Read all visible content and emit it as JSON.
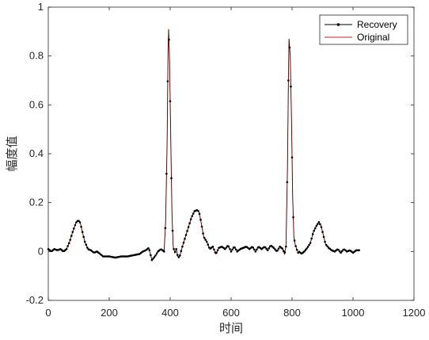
{
  "chart_data": {
    "type": "line",
    "xlabel": "时间",
    "ylabel": "幅度值",
    "xlim": [
      0,
      1200
    ],
    "ylim": [
      -0.2,
      1
    ],
    "xticks": [
      0,
      200,
      400,
      600,
      800,
      1000,
      1200
    ],
    "yticks": [
      -0.2,
      0,
      0.2,
      0.4,
      0.6,
      0.8,
      1
    ],
    "xtick_labels": [
      "0",
      "200",
      "400",
      "600",
      "800",
      "1000",
      "1200"
    ],
    "ytick_labels": [
      "-0.2",
      "0",
      "0.2",
      "0.4",
      "0.6",
      "0.8",
      "1"
    ],
    "grid": false,
    "legend_position": "top-right",
    "series": [
      {
        "name": "Recovery",
        "color": "#000000",
        "marker": "dot"
      },
      {
        "name": "Original",
        "color": "#cc1f1f",
        "marker": "none"
      }
    ],
    "x": [
      0,
      10,
      20,
      30,
      40,
      50,
      60,
      70,
      80,
      90,
      95,
      100,
      105,
      110,
      120,
      130,
      140,
      150,
      160,
      170,
      180,
      200,
      220,
      240,
      260,
      280,
      300,
      310,
      320,
      330,
      340,
      350,
      360,
      370,
      380,
      385,
      390,
      393,
      395,
      398,
      402,
      406,
      410,
      415,
      420,
      425,
      430,
      440,
      450,
      460,
      470,
      480,
      490,
      495,
      500,
      510,
      520,
      530,
      540,
      550,
      560,
      570,
      580,
      590,
      600,
      610,
      620,
      630,
      640,
      650,
      660,
      670,
      680,
      690,
      700,
      710,
      720,
      730,
      740,
      750,
      760,
      770,
      775,
      780,
      785,
      788,
      790,
      794,
      798,
      802,
      806,
      810,
      815,
      820,
      825,
      830,
      840,
      850,
      860,
      870,
      880,
      888,
      895,
      900,
      910,
      920,
      930,
      940,
      950,
      960,
      970,
      980,
      990,
      1000,
      1010,
      1020
    ],
    "values": [
      0.01,
      0.0,
      0.01,
      0.005,
      0.01,
      0.0,
      0.01,
      0.04,
      0.08,
      0.115,
      0.125,
      0.125,
      0.118,
      0.09,
      0.04,
      0.01,
      0.005,
      -0.005,
      0.0,
      -0.01,
      -0.02,
      -0.02,
      -0.025,
      -0.02,
      -0.02,
      -0.015,
      -0.01,
      0.0,
      0.005,
      0.015,
      -0.035,
      -0.02,
      0.0,
      0.01,
      0.0,
      0.12,
      0.45,
      0.82,
      0.91,
      0.78,
      0.45,
      0.15,
      0.02,
      -0.005,
      0.01,
      -0.02,
      -0.025,
      0.02,
      0.06,
      0.1,
      0.14,
      0.165,
      0.17,
      0.16,
      0.13,
      0.06,
      0.04,
      0.01,
      0.02,
      -0.01,
      0.015,
      0.02,
      0.01,
      0.025,
      0.0,
      0.02,
      0.0,
      0.01,
      0.015,
      0.02,
      0.01,
      0.02,
      0.0,
      0.02,
      0.01,
      0.02,
      0.005,
      0.025,
      0.015,
      0.0,
      0.02,
      0.01,
      -0.01,
      0.02,
      0.35,
      0.7,
      0.87,
      0.8,
      0.55,
      0.22,
      0.06,
      0.03,
      0.01,
      -0.005,
      0.0,
      -0.01,
      0.0,
      0.015,
      0.035,
      0.08,
      0.105,
      0.12,
      0.105,
      0.08,
      0.03,
      0.015,
      0.005,
      0.0,
      0.01,
      -0.005,
      0.01,
      0.0,
      0.005,
      -0.005,
      0.005,
      0.005
    ]
  }
}
